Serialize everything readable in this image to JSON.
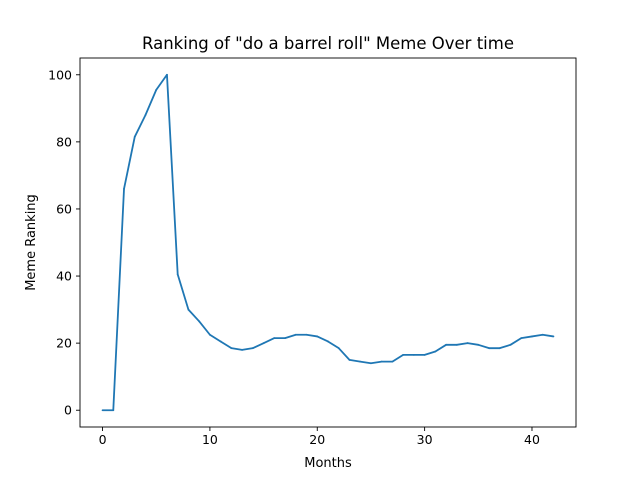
{
  "chart_data": {
    "type": "line",
    "title": "Ranking of \"do a barrel roll\" Meme Over time",
    "xlabel": "Months",
    "ylabel": "Meme Ranking",
    "xlim": [
      -2.1,
      44.1
    ],
    "ylim": [
      -5,
      105
    ],
    "xticks": [
      0,
      10,
      20,
      30,
      40
    ],
    "yticks": [
      0,
      20,
      40,
      60,
      80,
      100
    ],
    "grid": false,
    "legend": "none",
    "series": [
      {
        "color": "#1f77b4",
        "x": [
          0,
          1,
          2,
          3,
          4,
          5,
          6,
          7,
          8,
          9,
          10,
          11,
          12,
          13,
          14,
          15,
          16,
          17,
          18,
          19,
          20,
          21,
          22,
          23,
          24,
          25,
          26,
          27,
          28,
          29,
          30,
          31,
          32,
          33,
          34,
          35,
          36,
          37,
          38,
          39,
          40,
          41,
          42
        ],
        "y": [
          0,
          0,
          66,
          81.5,
          88,
          95.5,
          100,
          40.5,
          30,
          26.5,
          22.5,
          20.5,
          18.5,
          18,
          18.5,
          20,
          21.5,
          21.5,
          22.5,
          22.5,
          22,
          20.5,
          18.5,
          15,
          14.5,
          14,
          14.5,
          14.5,
          16.5,
          16.5,
          16.5,
          17.5,
          19.5,
          19.5,
          20,
          19.5,
          18.5,
          18.5,
          19.5,
          21.5,
          22,
          22.5,
          22
        ]
      }
    ]
  }
}
